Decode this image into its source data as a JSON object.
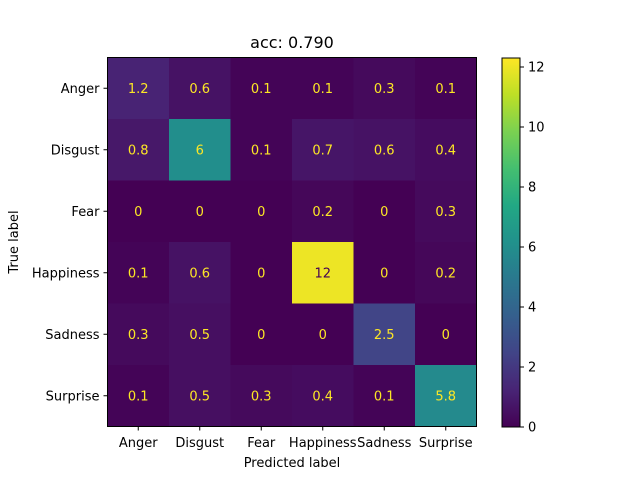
{
  "chart_data": {
    "type": "heatmap",
    "title": "acc: 0.790",
    "xlabel": "Predicted label",
    "ylabel": "True label",
    "x_categories": [
      "Anger",
      "Disgust",
      "Fear",
      "Happiness",
      "Sadness",
      "Surprise"
    ],
    "y_categories": [
      "Anger",
      "Disgust",
      "Fear",
      "Happiness",
      "Sadness",
      "Surprise"
    ],
    "values": [
      [
        1.2,
        0.6,
        0.1,
        0.1,
        0.3,
        0.1
      ],
      [
        0.8,
        6,
        0.1,
        0.7,
        0.6,
        0.4
      ],
      [
        0,
        0,
        0,
        0.2,
        0,
        0.3
      ],
      [
        0.1,
        0.6,
        0,
        12,
        0,
        0.2
      ],
      [
        0.3,
        0.5,
        0,
        0,
        2.5,
        0
      ],
      [
        0.1,
        0.5,
        0.3,
        0.4,
        0.1,
        5.8
      ]
    ],
    "value_labels": [
      [
        "1.2",
        "0.6",
        "0.1",
        "0.1",
        "0.3",
        "0.1"
      ],
      [
        "0.8",
        "6",
        "0.1",
        "0.7",
        "0.6",
        "0.4"
      ],
      [
        "0",
        "0",
        "0",
        "0.2",
        "0",
        "0.3"
      ],
      [
        "0.1",
        "0.6",
        "0",
        "12",
        "0",
        "0.2"
      ],
      [
        "0.3",
        "0.5",
        "0",
        "0",
        "2.5",
        "0"
      ],
      [
        "0.1",
        "0.5",
        "0.3",
        "0.4",
        "0.1",
        "5.8"
      ]
    ],
    "colormap": "viridis",
    "color_range": [
      0,
      12.3
    ],
    "colorbar_ticks": [
      0,
      2,
      4,
      6,
      8,
      10,
      12
    ],
    "text_color_dark_cells": "#fde725",
    "text_color_light_cells": "#440154"
  }
}
